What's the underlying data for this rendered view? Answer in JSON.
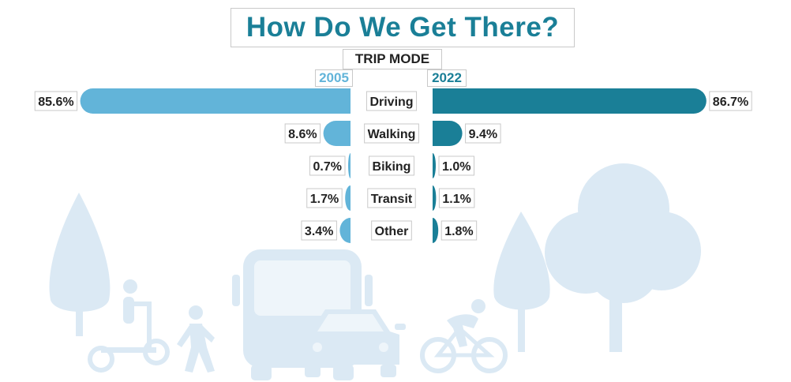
{
  "chart_data": {
    "type": "bar",
    "title": "How Do We Get There?",
    "subtitle": "TRIP MODE",
    "categories": [
      "Driving",
      "Walking",
      "Biking",
      "Transit",
      "Other"
    ],
    "series": [
      {
        "name": "2005",
        "values": [
          85.6,
          8.6,
          0.7,
          1.7,
          3.4
        ],
        "labels": [
          "85.6%",
          "8.6%",
          "0.7%",
          "1.7%",
          "3.4%"
        ],
        "color": "#62b4d9"
      },
      {
        "name": "2022",
        "values": [
          86.7,
          9.4,
          1.0,
          1.1,
          1.8
        ],
        "labels": [
          "86.7%",
          "9.4%",
          "1.0%",
          "1.1%",
          "1.8%"
        ],
        "color": "#1a7f97"
      }
    ],
    "orientation": "butterfly-horizontal"
  },
  "colors": {
    "background_illustration": "#dbe9f4",
    "title": "#1a7f97",
    "series_2005": "#62b4d9",
    "series_2022": "#1a7f97"
  },
  "background_icons": [
    "tree-icon",
    "scooter-rider-icon",
    "pedestrian-icon",
    "bus-icon",
    "car-icon",
    "cyclist-icon",
    "tree-icon"
  ]
}
